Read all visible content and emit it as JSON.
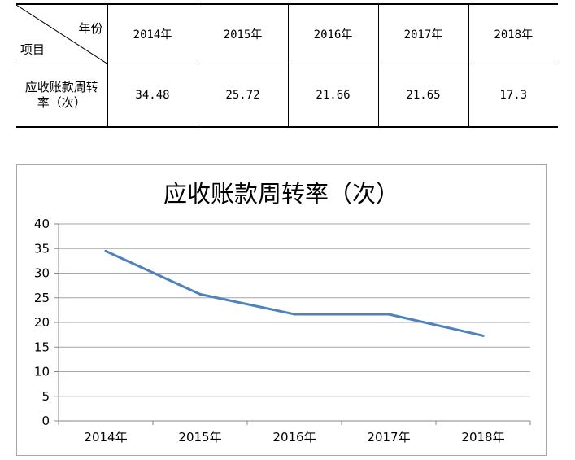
{
  "table": {
    "corner_top": "年份",
    "corner_bottom": "项目",
    "years": [
      "2014年",
      "2015年",
      "2016年",
      "2017年",
      "2018年"
    ],
    "row_label_line1": "应收账款周转",
    "row_label_line2": "率（次）",
    "values": [
      "34.48",
      "25.72",
      "21.66",
      "21.65",
      "17.3"
    ]
  },
  "chart_data": {
    "type": "line",
    "title": "应收账款周转率（次）",
    "categories": [
      "2014年",
      "2015年",
      "2016年",
      "2017年",
      "2018年"
    ],
    "series": [
      {
        "values": [
          34.48,
          25.72,
          21.66,
          21.65,
          17.3
        ],
        "color": "#4f81bd"
      }
    ],
    "ylim": [
      0,
      40
    ],
    "yticks": [
      0,
      5,
      10,
      15,
      20,
      25,
      30,
      35,
      40
    ],
    "grid": true,
    "legend": "none"
  }
}
